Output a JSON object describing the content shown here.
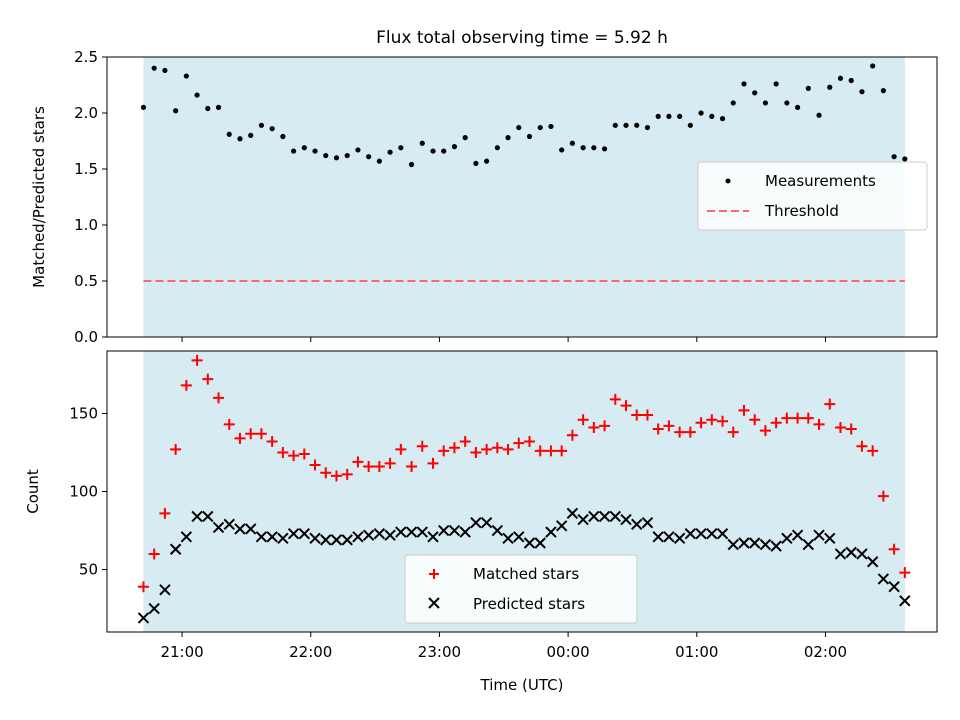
{
  "title": "Flux total observing time = 5.92 h",
  "colors": {
    "shade": "#add8e6",
    "measurement": "#000000",
    "threshold": "#ff6666",
    "matched": "#ff0000",
    "predicted": "#000000"
  },
  "chart_data": [
    {
      "type": "scatter",
      "panel": "top",
      "ylabel": "Matched/Predicted stars",
      "ylim": [
        0,
        2.5
      ],
      "yticks": [
        0.0,
        0.5,
        1.0,
        1.5,
        2.0,
        2.5
      ],
      "ytick_labels": [
        "0.0",
        "0.5",
        "1.0",
        "1.5",
        "2.0",
        "2.5"
      ],
      "xlim": [
        "20:25",
        "02:52"
      ],
      "shaded_span": [
        "20:42",
        "02:37"
      ],
      "threshold": 0.5,
      "legend_placement": "center right",
      "legend": [
        {
          "label": "Measurements",
          "marker": "dot"
        },
        {
          "label": "Threshold",
          "marker": "dashed-line"
        }
      ],
      "series": [
        {
          "name": "Measurements",
          "x": [
            "20:42",
            "20:47",
            "20:52",
            "20:57",
            "21:02",
            "21:07",
            "21:12",
            "21:17",
            "21:22",
            "21:27",
            "21:32",
            "21:37",
            "21:42",
            "21:47",
            "21:52",
            "21:57",
            "22:02",
            "22:07",
            "22:12",
            "22:17",
            "22:22",
            "22:27",
            "22:32",
            "22:37",
            "22:42",
            "22:47",
            "22:52",
            "22:57",
            "23:02",
            "23:07",
            "23:12",
            "23:17",
            "23:22",
            "23:27",
            "23:32",
            "23:37",
            "23:42",
            "23:47",
            "23:52",
            "23:57",
            "00:02",
            "00:07",
            "00:12",
            "00:17",
            "00:22",
            "00:27",
            "00:32",
            "00:37",
            "00:42",
            "00:47",
            "00:52",
            "00:57",
            "01:02",
            "01:07",
            "01:12",
            "01:17",
            "01:22",
            "01:27",
            "01:32",
            "01:37",
            "01:42",
            "01:47",
            "01:52",
            "01:57",
            "02:02",
            "02:07",
            "02:12",
            "02:17",
            "02:22",
            "02:27",
            "02:32",
            "02:37"
          ],
          "values": [
            2.05,
            2.4,
            2.38,
            2.02,
            2.33,
            2.16,
            2.04,
            2.05,
            1.81,
            1.77,
            1.8,
            1.89,
            1.86,
            1.79,
            1.66,
            1.69,
            1.66,
            1.62,
            1.6,
            1.62,
            1.67,
            1.61,
            1.57,
            1.65,
            1.69,
            1.54,
            1.73,
            1.66,
            1.66,
            1.7,
            1.78,
            1.55,
            1.57,
            1.69,
            1.78,
            1.87,
            1.79,
            1.87,
            1.88,
            1.67,
            1.73,
            1.69,
            1.69,
            1.68,
            1.89,
            1.89,
            1.89,
            1.87,
            1.97,
            1.97,
            1.97,
            1.89,
            2.0,
            1.97,
            1.95,
            2.09,
            2.26,
            2.18,
            2.09,
            2.26,
            2.09,
            2.05,
            2.22,
            1.98,
            2.23,
            2.31,
            2.29,
            2.19,
            2.42,
            2.2,
            1.61,
            1.59
          ]
        }
      ]
    },
    {
      "type": "scatter",
      "panel": "bottom",
      "xlabel": "Time (UTC)",
      "ylabel": "Count",
      "ylim": [
        10,
        190
      ],
      "yticks": [
        50,
        100,
        150
      ],
      "ytick_labels": [
        "50",
        "100",
        "150"
      ],
      "xlim": [
        "20:25",
        "02:52"
      ],
      "xticks": [
        "21:00",
        "22:00",
        "23:00",
        "00:00",
        "01:00",
        "02:00"
      ],
      "xtick_labels": [
        "21:00",
        "22:00",
        "23:00",
        "00:00",
        "01:00",
        "02:00"
      ],
      "shaded_span": [
        "20:42",
        "02:37"
      ],
      "legend_placement": "lower center",
      "legend": [
        {
          "label": "Matched stars",
          "marker": "plus"
        },
        {
          "label": "Predicted stars",
          "marker": "x"
        }
      ],
      "series": [
        {
          "name": "Matched stars",
          "marker": "plus",
          "x": [
            "20:42",
            "20:47",
            "20:52",
            "20:57",
            "21:02",
            "21:07",
            "21:12",
            "21:17",
            "21:22",
            "21:27",
            "21:32",
            "21:37",
            "21:42",
            "21:47",
            "21:52",
            "21:57",
            "22:02",
            "22:07",
            "22:12",
            "22:17",
            "22:22",
            "22:27",
            "22:32",
            "22:37",
            "22:42",
            "22:47",
            "22:52",
            "22:57",
            "23:02",
            "23:07",
            "23:12",
            "23:17",
            "23:22",
            "23:27",
            "23:32",
            "23:37",
            "23:42",
            "23:47",
            "23:52",
            "23:57",
            "00:02",
            "00:07",
            "00:12",
            "00:17",
            "00:22",
            "00:27",
            "00:32",
            "00:37",
            "00:42",
            "00:47",
            "00:52",
            "00:57",
            "01:02",
            "01:07",
            "01:12",
            "01:17",
            "01:22",
            "01:27",
            "01:32",
            "01:37",
            "01:42",
            "01:47",
            "01:52",
            "01:57",
            "02:02",
            "02:07",
            "02:12",
            "02:17",
            "02:22",
            "02:27",
            "02:32",
            "02:37"
          ],
          "values": [
            39,
            60,
            86,
            127,
            168,
            184,
            172,
            160,
            143,
            134,
            137,
            137,
            132,
            125,
            123,
            124,
            117,
            112,
            110,
            111,
            119,
            116,
            116,
            118,
            127,
            116,
            129,
            118,
            126,
            128,
            132,
            125,
            127,
            128,
            127,
            131,
            132,
            126,
            126,
            126,
            136,
            146,
            141,
            142,
            159,
            155,
            149,
            149,
            140,
            142,
            138,
            138,
            144,
            146,
            145,
            138,
            152,
            146,
            139,
            144,
            147,
            147,
            147,
            143,
            156,
            141,
            140,
            129,
            126,
            97,
            63,
            48
          ]
        },
        {
          "name": "Predicted stars",
          "marker": "x",
          "x": [
            "20:42",
            "20:47",
            "20:52",
            "20:57",
            "21:02",
            "21:07",
            "21:12",
            "21:17",
            "21:22",
            "21:27",
            "21:32",
            "21:37",
            "21:42",
            "21:47",
            "21:52",
            "21:57",
            "22:02",
            "22:07",
            "22:12",
            "22:17",
            "22:22",
            "22:27",
            "22:32",
            "22:37",
            "22:42",
            "22:47",
            "22:52",
            "22:57",
            "23:02",
            "23:07",
            "23:12",
            "23:17",
            "23:22",
            "23:27",
            "23:32",
            "23:37",
            "23:42",
            "23:47",
            "23:52",
            "23:57",
            "00:02",
            "00:07",
            "00:12",
            "00:17",
            "00:22",
            "00:27",
            "00:32",
            "00:37",
            "00:42",
            "00:47",
            "00:52",
            "00:57",
            "01:02",
            "01:07",
            "01:12",
            "01:17",
            "01:22",
            "01:27",
            "01:32",
            "01:37",
            "01:42",
            "01:47",
            "01:52",
            "01:57",
            "02:02",
            "02:07",
            "02:12",
            "02:17",
            "02:22",
            "02:27",
            "02:32",
            "02:37"
          ],
          "values": [
            19,
            25,
            37,
            63,
            71,
            84,
            84,
            77,
            79,
            76,
            76,
            71,
            71,
            70,
            73,
            73,
            70,
            69,
            69,
            69,
            71,
            72,
            73,
            72,
            74,
            74,
            74,
            71,
            75,
            75,
            74,
            80,
            80,
            75,
            70,
            71,
            67,
            67,
            74,
            78,
            86,
            82,
            84,
            84,
            84,
            82,
            79,
            80,
            71,
            71,
            70,
            73,
            73,
            73,
            73,
            66,
            67,
            67,
            66,
            65,
            70,
            72,
            66,
            72,
            70,
            60,
            61,
            60,
            55,
            44,
            39,
            30
          ]
        }
      ]
    }
  ]
}
